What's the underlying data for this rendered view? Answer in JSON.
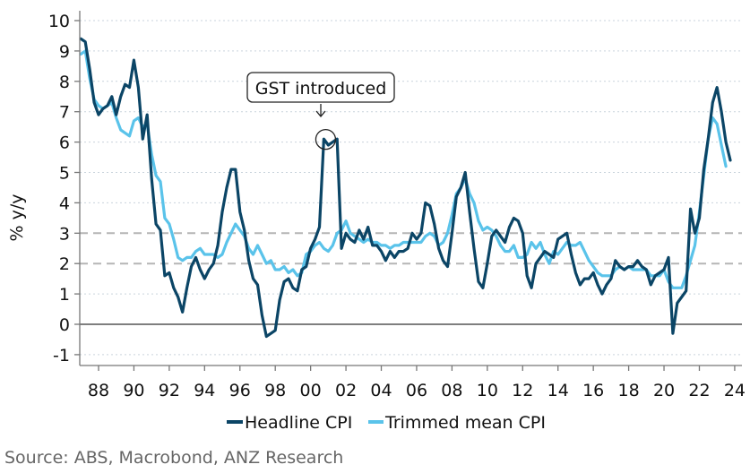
{
  "chart_data": {
    "type": "line",
    "title": "",
    "xlabel": "",
    "ylabel": "% y/y",
    "xlim": [
      1987,
      2024.5
    ],
    "ylim": [
      -1.4,
      10.4
    ],
    "x_ticks": [
      1988,
      1990,
      1992,
      1994,
      1996,
      1998,
      2000,
      2002,
      2004,
      2006,
      2008,
      2010,
      2012,
      2014,
      2016,
      2018,
      2020,
      2022,
      2024
    ],
    "x_tick_labels": [
      "88",
      "90",
      "92",
      "94",
      "96",
      "98",
      "00",
      "02",
      "04",
      "06",
      "08",
      "10",
      "12",
      "14",
      "16",
      "18",
      "20",
      "22",
      "24"
    ],
    "y_ticks": [
      -1,
      0,
      1,
      2,
      3,
      4,
      5,
      6,
      7,
      8,
      9,
      10
    ],
    "y_tick_labels": [
      "-1",
      "0",
      "1",
      "2",
      "3",
      "4",
      "5",
      "6",
      "7",
      "8",
      "9",
      "10"
    ],
    "grid": "horizontal dotted",
    "reference_lines": [
      2,
      3
    ],
    "reference_line_style": "dashed grey (RBA 2-3% target band)",
    "legend_position": "bottom-center",
    "series": [
      {
        "name": "Headline CPI",
        "color": "#0b4566",
        "points": [
          [
            1987.0,
            9.4
          ],
          [
            1987.25,
            9.3
          ],
          [
            1987.5,
            8.4
          ],
          [
            1987.75,
            7.3
          ],
          [
            1988.0,
            6.9
          ],
          [
            1988.25,
            7.1
          ],
          [
            1988.5,
            7.2
          ],
          [
            1988.75,
            7.5
          ],
          [
            1989.0,
            6.9
          ],
          [
            1989.25,
            7.5
          ],
          [
            1989.5,
            7.9
          ],
          [
            1989.75,
            7.8
          ],
          [
            1990.0,
            8.7
          ],
          [
            1990.25,
            7.8
          ],
          [
            1990.5,
            6.1
          ],
          [
            1990.75,
            6.9
          ],
          [
            1991.0,
            4.8
          ],
          [
            1991.25,
            3.3
          ],
          [
            1991.5,
            3.1
          ],
          [
            1991.75,
            1.6
          ],
          [
            1992.0,
            1.7
          ],
          [
            1992.25,
            1.2
          ],
          [
            1992.5,
            0.9
          ],
          [
            1992.75,
            0.4
          ],
          [
            1993.0,
            1.2
          ],
          [
            1993.25,
            1.9
          ],
          [
            1993.5,
            2.2
          ],
          [
            1993.75,
            1.8
          ],
          [
            1994.0,
            1.5
          ],
          [
            1994.25,
            1.8
          ],
          [
            1994.5,
            2.0
          ],
          [
            1994.75,
            2.6
          ],
          [
            1995.0,
            3.7
          ],
          [
            1995.25,
            4.5
          ],
          [
            1995.5,
            5.1
          ],
          [
            1995.75,
            5.1
          ],
          [
            1996.0,
            3.7
          ],
          [
            1996.25,
            3.1
          ],
          [
            1996.5,
            2.1
          ],
          [
            1996.75,
            1.5
          ],
          [
            1997.0,
            1.3
          ],
          [
            1997.25,
            0.3
          ],
          [
            1997.5,
            -0.4
          ],
          [
            1997.75,
            -0.3
          ],
          [
            1998.0,
            -0.2
          ],
          [
            1998.25,
            0.8
          ],
          [
            1998.5,
            1.4
          ],
          [
            1998.75,
            1.5
          ],
          [
            1999.0,
            1.2
          ],
          [
            1999.25,
            1.1
          ],
          [
            1999.5,
            1.8
          ],
          [
            1999.75,
            1.9
          ],
          [
            2000.0,
            2.5
          ],
          [
            2000.25,
            2.8
          ],
          [
            2000.5,
            3.2
          ],
          [
            2000.75,
            6.1
          ],
          [
            2001.0,
            5.9
          ],
          [
            2001.25,
            6.0
          ],
          [
            2001.5,
            6.1
          ],
          [
            2001.75,
            2.5
          ],
          [
            2002.0,
            3.0
          ],
          [
            2002.25,
            2.8
          ],
          [
            2002.5,
            2.7
          ],
          [
            2002.75,
            3.1
          ],
          [
            2003.0,
            2.8
          ],
          [
            2003.25,
            3.2
          ],
          [
            2003.5,
            2.6
          ],
          [
            2003.75,
            2.6
          ],
          [
            2004.0,
            2.4
          ],
          [
            2004.25,
            2.1
          ],
          [
            2004.5,
            2.4
          ],
          [
            2004.75,
            2.2
          ],
          [
            2005.0,
            2.4
          ],
          [
            2005.25,
            2.4
          ],
          [
            2005.5,
            2.5
          ],
          [
            2005.75,
            3.0
          ],
          [
            2006.0,
            2.8
          ],
          [
            2006.25,
            3.0
          ],
          [
            2006.5,
            4.0
          ],
          [
            2006.75,
            3.9
          ],
          [
            2007.0,
            3.3
          ],
          [
            2007.25,
            2.5
          ],
          [
            2007.5,
            2.1
          ],
          [
            2007.75,
            1.9
          ],
          [
            2008.0,
            3.0
          ],
          [
            2008.25,
            4.2
          ],
          [
            2008.5,
            4.5
          ],
          [
            2008.75,
            5.0
          ],
          [
            2009.0,
            3.7
          ],
          [
            2009.25,
            2.5
          ],
          [
            2009.5,
            1.4
          ],
          [
            2009.75,
            1.2
          ],
          [
            2010.0,
            2.0
          ],
          [
            2010.25,
            2.9
          ],
          [
            2010.5,
            3.1
          ],
          [
            2010.75,
            2.9
          ],
          [
            2011.0,
            2.7
          ],
          [
            2011.25,
            3.2
          ],
          [
            2011.5,
            3.5
          ],
          [
            2011.75,
            3.4
          ],
          [
            2012.0,
            3.0
          ],
          [
            2012.25,
            1.6
          ],
          [
            2012.5,
            1.2
          ],
          [
            2012.75,
            2.0
          ],
          [
            2013.0,
            2.2
          ],
          [
            2013.25,
            2.4
          ],
          [
            2013.5,
            2.3
          ],
          [
            2013.75,
            2.2
          ],
          [
            2014.0,
            2.8
          ],
          [
            2014.25,
            2.9
          ],
          [
            2014.5,
            3.0
          ],
          [
            2014.75,
            2.3
          ],
          [
            2015.0,
            1.7
          ],
          [
            2015.25,
            1.3
          ],
          [
            2015.5,
            1.5
          ],
          [
            2015.75,
            1.5
          ],
          [
            2016.0,
            1.7
          ],
          [
            2016.25,
            1.3
          ],
          [
            2016.5,
            1.0
          ],
          [
            2016.75,
            1.3
          ],
          [
            2017.0,
            1.5
          ],
          [
            2017.25,
            2.1
          ],
          [
            2017.5,
            1.9
          ],
          [
            2017.75,
            1.8
          ],
          [
            2018.0,
            1.9
          ],
          [
            2018.25,
            1.9
          ],
          [
            2018.5,
            2.1
          ],
          [
            2018.75,
            1.9
          ],
          [
            2019.0,
            1.8
          ],
          [
            2019.25,
            1.3
          ],
          [
            2019.5,
            1.6
          ],
          [
            2019.75,
            1.7
          ],
          [
            2020.0,
            1.8
          ],
          [
            2020.25,
            2.2
          ],
          [
            2020.5,
            -0.3
          ],
          [
            2020.75,
            0.7
          ],
          [
            2021.0,
            0.9
          ],
          [
            2021.25,
            1.1
          ],
          [
            2021.5,
            3.8
          ],
          [
            2021.75,
            3.0
          ],
          [
            2022.0,
            3.5
          ],
          [
            2022.25,
            5.1
          ],
          [
            2022.5,
            6.1
          ],
          [
            2022.75,
            7.3
          ],
          [
            2023.0,
            7.8
          ],
          [
            2023.25,
            7.0
          ],
          [
            2023.5,
            6.0
          ],
          [
            2023.75,
            5.4
          ]
        ]
      },
      {
        "name": "Trimmed mean CPI",
        "color": "#5ac3ea",
        "points": [
          [
            1987.0,
            8.9
          ],
          [
            1987.25,
            9.0
          ],
          [
            1987.5,
            8.1
          ],
          [
            1987.75,
            7.4
          ],
          [
            1988.0,
            7.2
          ],
          [
            1988.25,
            7.1
          ],
          [
            1988.5,
            7.2
          ],
          [
            1988.75,
            7.3
          ],
          [
            1989.0,
            6.8
          ],
          [
            1989.25,
            6.4
          ],
          [
            1989.5,
            6.3
          ],
          [
            1989.75,
            6.2
          ],
          [
            1990.0,
            6.7
          ],
          [
            1990.25,
            6.8
          ],
          [
            1990.5,
            6.5
          ],
          [
            1990.75,
            6.6
          ],
          [
            1991.0,
            5.6
          ],
          [
            1991.25,
            4.9
          ],
          [
            1991.5,
            4.7
          ],
          [
            1991.75,
            3.5
          ],
          [
            1992.0,
            3.3
          ],
          [
            1992.25,
            2.8
          ],
          [
            1992.5,
            2.2
          ],
          [
            1992.75,
            2.1
          ],
          [
            1993.0,
            2.2
          ],
          [
            1993.25,
            2.2
          ],
          [
            1993.5,
            2.4
          ],
          [
            1993.75,
            2.5
          ],
          [
            1994.0,
            2.3
          ],
          [
            1994.25,
            2.3
          ],
          [
            1994.5,
            2.3
          ],
          [
            1994.75,
            2.2
          ],
          [
            1995.0,
            2.3
          ],
          [
            1995.25,
            2.7
          ],
          [
            1995.5,
            3.0
          ],
          [
            1995.75,
            3.3
          ],
          [
            1996.0,
            3.1
          ],
          [
            1996.25,
            2.9
          ],
          [
            1996.5,
            2.5
          ],
          [
            1996.75,
            2.3
          ],
          [
            1997.0,
            2.6
          ],
          [
            1997.25,
            2.3
          ],
          [
            1997.5,
            2.0
          ],
          [
            1997.75,
            2.1
          ],
          [
            1998.0,
            1.8
          ],
          [
            1998.25,
            1.8
          ],
          [
            1998.5,
            1.9
          ],
          [
            1998.75,
            1.7
          ],
          [
            1999.0,
            1.8
          ],
          [
            1999.25,
            1.6
          ],
          [
            1999.5,
            1.7
          ],
          [
            1999.75,
            2.3
          ],
          [
            2000.0,
            2.4
          ],
          [
            2000.25,
            2.6
          ],
          [
            2000.5,
            2.7
          ],
          [
            2000.75,
            2.5
          ],
          [
            2001.0,
            2.4
          ],
          [
            2001.25,
            2.6
          ],
          [
            2001.5,
            3.0
          ],
          [
            2001.75,
            3.1
          ],
          [
            2002.0,
            3.4
          ],
          [
            2002.25,
            3.0
          ],
          [
            2002.5,
            2.9
          ],
          [
            2002.75,
            2.8
          ],
          [
            2003.0,
            2.7
          ],
          [
            2003.25,
            2.8
          ],
          [
            2003.5,
            2.7
          ],
          [
            2003.75,
            2.7
          ],
          [
            2004.0,
            2.6
          ],
          [
            2004.25,
            2.6
          ],
          [
            2004.5,
            2.5
          ],
          [
            2004.75,
            2.6
          ],
          [
            2005.0,
            2.6
          ],
          [
            2005.25,
            2.7
          ],
          [
            2005.5,
            2.7
          ],
          [
            2005.75,
            2.7
          ],
          [
            2006.0,
            2.7
          ],
          [
            2006.25,
            2.7
          ],
          [
            2006.5,
            2.9
          ],
          [
            2006.75,
            3.0
          ],
          [
            2007.0,
            2.9
          ],
          [
            2007.25,
            2.6
          ],
          [
            2007.5,
            2.7
          ],
          [
            2007.75,
            3.0
          ],
          [
            2008.0,
            3.6
          ],
          [
            2008.25,
            4.3
          ],
          [
            2008.5,
            4.5
          ],
          [
            2008.75,
            4.8
          ],
          [
            2009.0,
            4.3
          ],
          [
            2009.25,
            4.0
          ],
          [
            2009.5,
            3.4
          ],
          [
            2009.75,
            3.1
          ],
          [
            2010.0,
            3.2
          ],
          [
            2010.25,
            3.1
          ],
          [
            2010.5,
            2.9
          ],
          [
            2010.75,
            2.6
          ],
          [
            2011.0,
            2.4
          ],
          [
            2011.25,
            2.4
          ],
          [
            2011.5,
            2.6
          ],
          [
            2011.75,
            2.2
          ],
          [
            2012.0,
            2.2
          ],
          [
            2012.25,
            2.3
          ],
          [
            2012.5,
            2.7
          ],
          [
            2012.75,
            2.5
          ],
          [
            2013.0,
            2.7
          ],
          [
            2013.25,
            2.3
          ],
          [
            2013.5,
            2.0
          ],
          [
            2013.75,
            2.4
          ],
          [
            2014.0,
            2.3
          ],
          [
            2014.25,
            2.5
          ],
          [
            2014.5,
            2.7
          ],
          [
            2014.75,
            2.6
          ],
          [
            2015.0,
            2.6
          ],
          [
            2015.25,
            2.7
          ],
          [
            2015.5,
            2.4
          ],
          [
            2015.75,
            2.1
          ],
          [
            2016.0,
            1.9
          ],
          [
            2016.25,
            1.7
          ],
          [
            2016.5,
            1.6
          ],
          [
            2016.75,
            1.6
          ],
          [
            2017.0,
            1.6
          ],
          [
            2017.25,
            1.8
          ],
          [
            2017.5,
            1.9
          ],
          [
            2017.75,
            1.8
          ],
          [
            2018.0,
            1.9
          ],
          [
            2018.25,
            1.8
          ],
          [
            2018.5,
            1.8
          ],
          [
            2018.75,
            1.8
          ],
          [
            2019.0,
            1.8
          ],
          [
            2019.25,
            1.6
          ],
          [
            2019.5,
            1.6
          ],
          [
            2019.75,
            1.6
          ],
          [
            2020.0,
            1.8
          ],
          [
            2020.25,
            1.4
          ],
          [
            2020.5,
            1.2
          ],
          [
            2020.75,
            1.2
          ],
          [
            2021.0,
            1.2
          ],
          [
            2021.25,
            1.6
          ],
          [
            2021.5,
            2.1
          ],
          [
            2021.75,
            2.6
          ],
          [
            2022.0,
            3.7
          ],
          [
            2022.25,
            4.9
          ],
          [
            2022.5,
            6.1
          ],
          [
            2022.75,
            6.8
          ],
          [
            2023.0,
            6.6
          ],
          [
            2023.25,
            5.9
          ],
          [
            2023.5,
            5.2
          ]
        ]
      }
    ],
    "annotations": [
      {
        "text": "GST introduced",
        "x": 2000.75,
        "y": 6.0,
        "style": "callout box with arrow and circle"
      }
    ],
    "source": "Source: ABS, Macrobond, ANZ Research"
  }
}
